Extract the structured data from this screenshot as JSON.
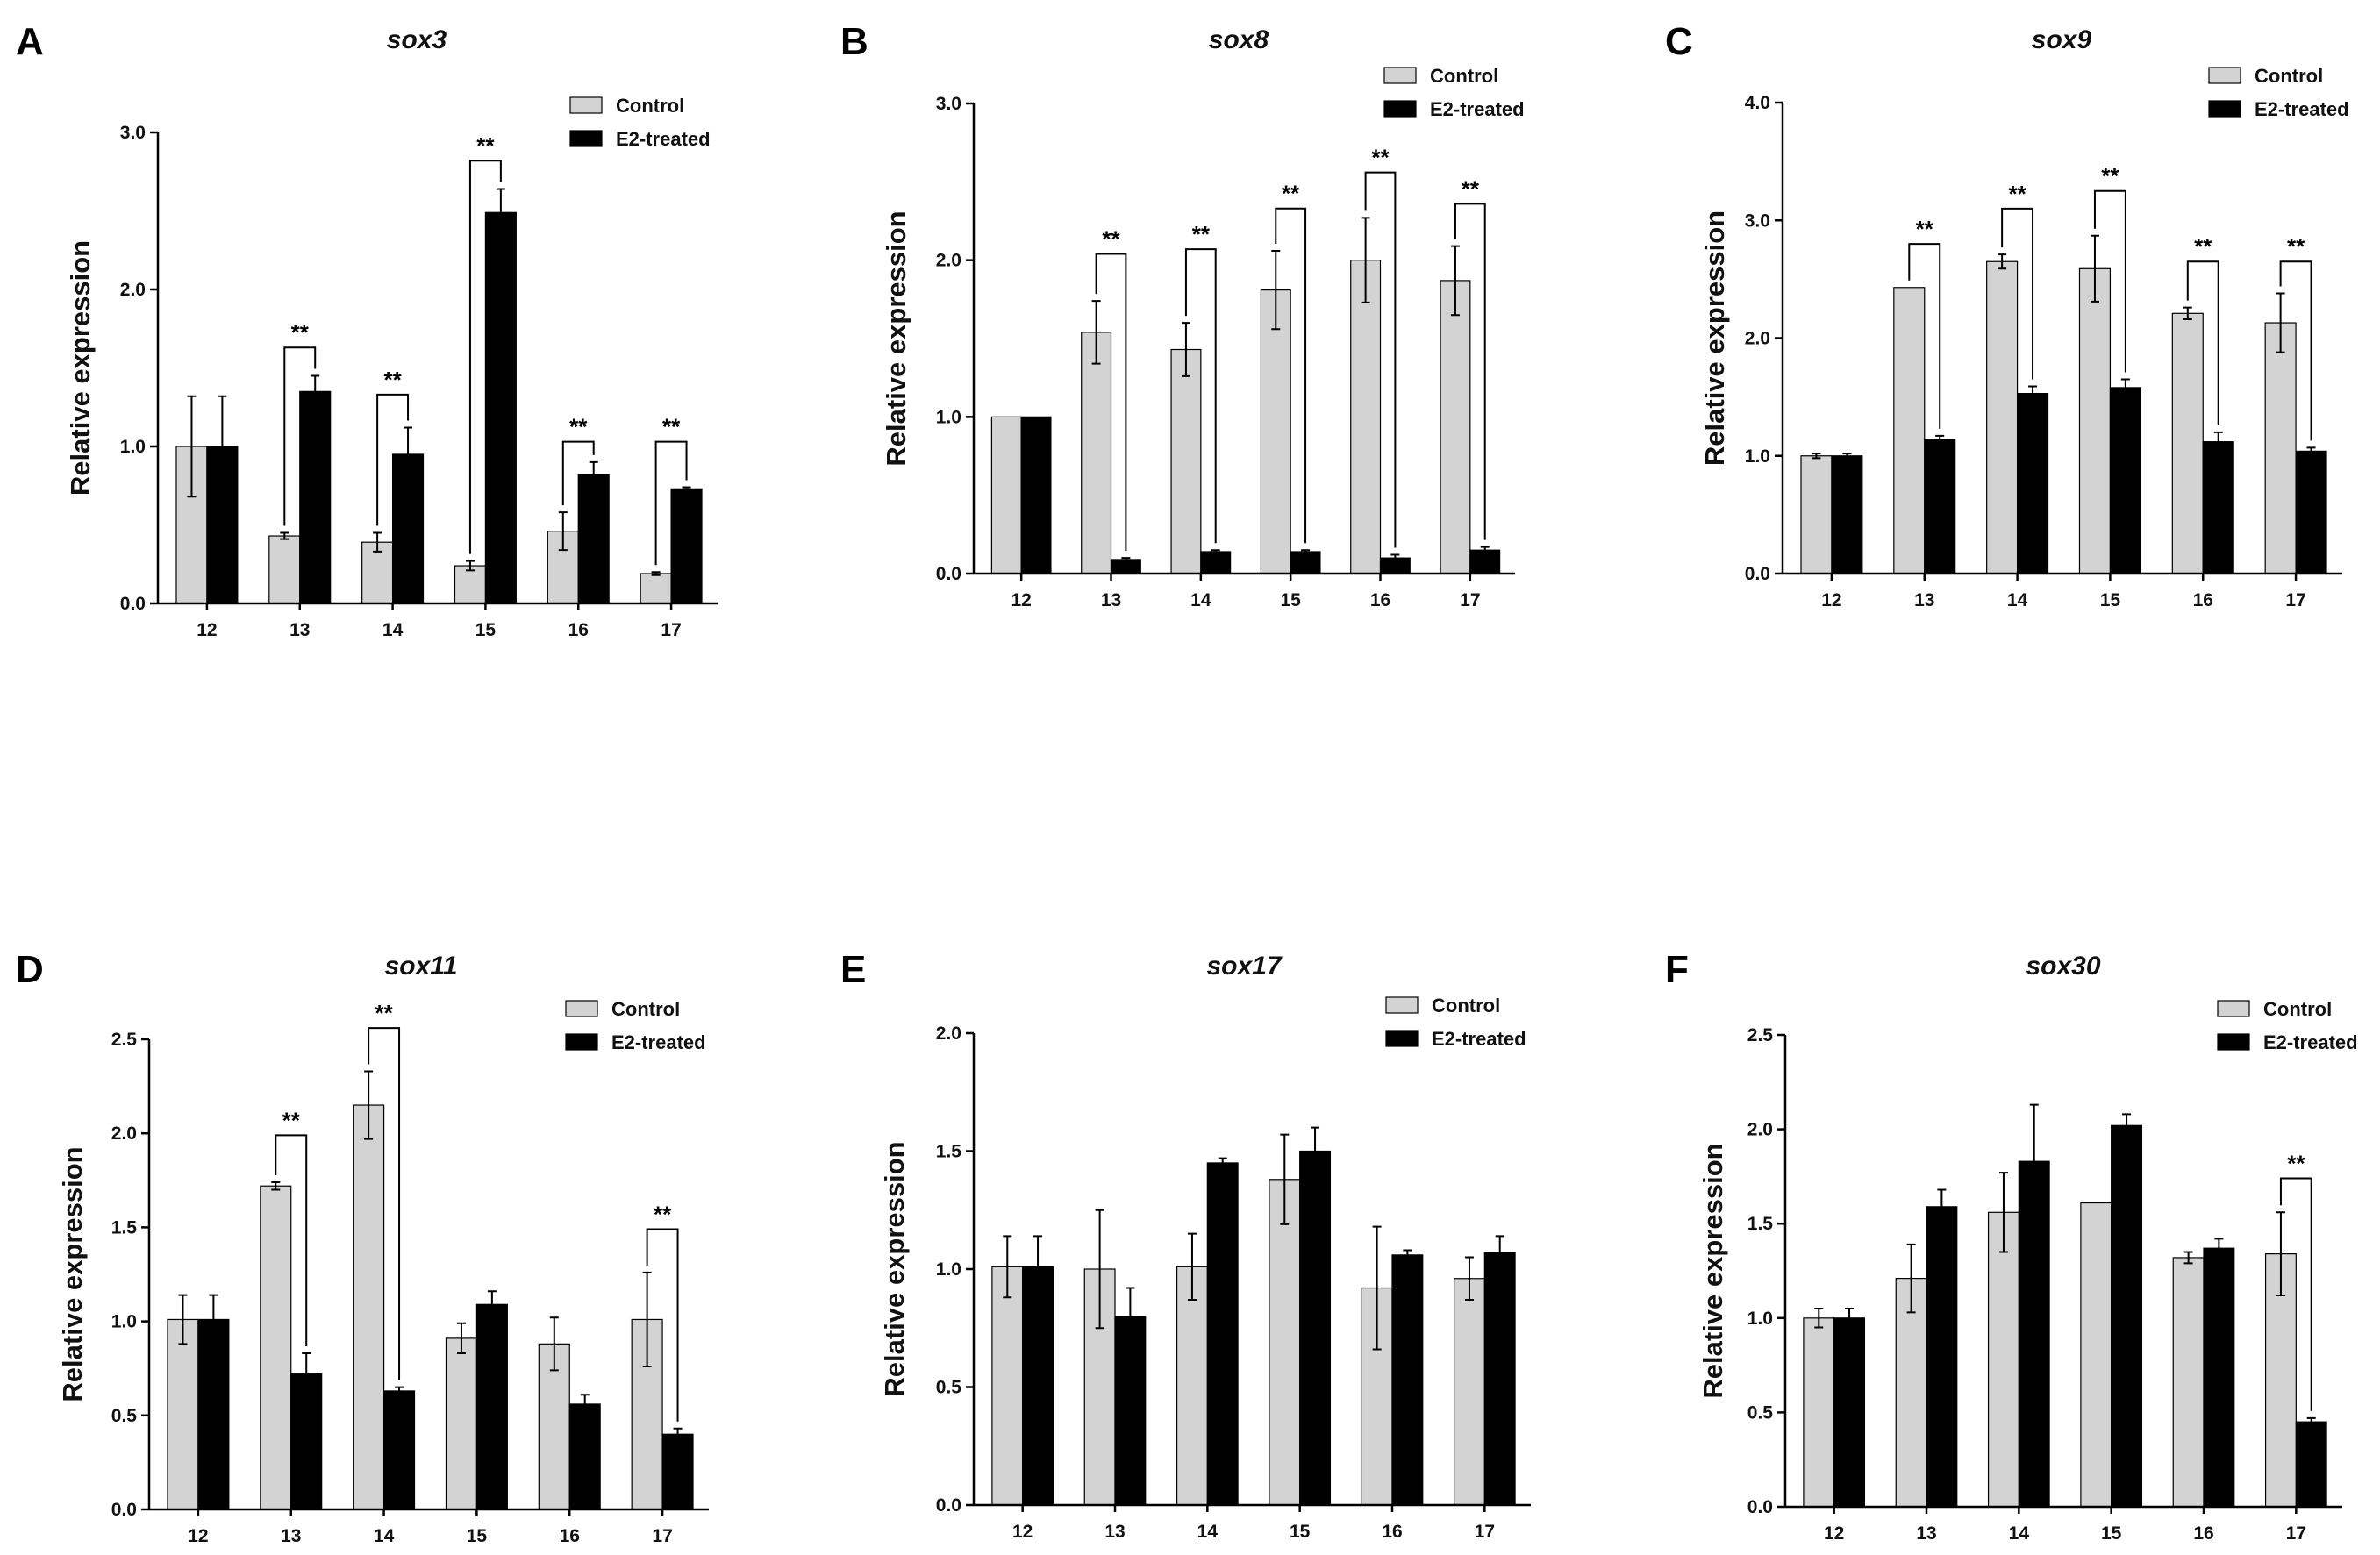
{
  "colors": {
    "control": "#d3d3d3",
    "e2": "#000000",
    "axis": "#000000"
  },
  "chart_data": [
    {
      "panel": "A",
      "type": "bar",
      "title": "sox3",
      "ylabel": "Relative  expression",
      "categories": [
        "12",
        "13",
        "14",
        "15",
        "16",
        "17"
      ],
      "ylim": [
        0,
        3.0
      ],
      "yticks": [
        0.0,
        1.0,
        2.0,
        3.0
      ],
      "ytick_labels": [
        "0.0",
        "1.0",
        "2.0",
        "3.0"
      ],
      "legend": [
        "Control",
        "E2-treated"
      ],
      "legend_position": "top-right",
      "series": [
        {
          "name": "Control",
          "values": [
            1.0,
            0.43,
            0.39,
            0.24,
            0.46,
            0.19
          ],
          "errors": [
            0.32,
            0.02,
            0.06,
            0.03,
            0.12,
            0.01
          ]
        },
        {
          "name": "E2-treated",
          "values": [
            1.0,
            1.35,
            0.95,
            2.49,
            0.82,
            0.73
          ],
          "errors": [
            0.32,
            0.1,
            0.17,
            0.15,
            0.08,
            0.01
          ]
        }
      ],
      "significance": [
        {
          "index": 1,
          "label": "**",
          "y": 1.63
        },
        {
          "index": 2,
          "label": "**",
          "y": 1.33
        },
        {
          "index": 3,
          "label": "**",
          "y": 2.82
        },
        {
          "index": 4,
          "label": "**",
          "y": 1.03
        },
        {
          "index": 5,
          "label": "**",
          "y": 1.03
        }
      ]
    },
    {
      "panel": "B",
      "type": "bar",
      "title": "sox8",
      "ylabel": "Relative  expression",
      "categories": [
        "12",
        "13",
        "14",
        "15",
        "16",
        "17"
      ],
      "ylim": [
        0,
        3.0
      ],
      "yticks": [
        0.0,
        1.0,
        2.0,
        3.0
      ],
      "ytick_labels": [
        "0.0",
        "1.0",
        "2.0",
        "3.0"
      ],
      "legend": [
        "Control",
        "E2-treated"
      ],
      "legend_position": "top-right",
      "series": [
        {
          "name": "Control",
          "values": [
            1.0,
            1.54,
            1.43,
            1.81,
            2.0,
            1.87
          ],
          "errors": [
            0,
            0.2,
            0.17,
            0.25,
            0.27,
            0.22
          ]
        },
        {
          "name": "E2-treated",
          "values": [
            1.0,
            0.09,
            0.14,
            0.14,
            0.1,
            0.15
          ],
          "errors": [
            0,
            0.01,
            0.01,
            0.01,
            0.02,
            0.02
          ]
        }
      ],
      "significance": [
        {
          "index": 1,
          "label": "**",
          "y": 2.04
        },
        {
          "index": 2,
          "label": "**",
          "y": 2.07
        },
        {
          "index": 3,
          "label": "**",
          "y": 2.33
        },
        {
          "index": 4,
          "label": "**",
          "y": 2.56
        },
        {
          "index": 5,
          "label": "**",
          "y": 2.36
        }
      ]
    },
    {
      "panel": "C",
      "type": "bar",
      "title": "sox9",
      "ylabel": "Relative  expression",
      "categories": [
        "12",
        "13",
        "14",
        "15",
        "16",
        "17"
      ],
      "ylim": [
        0,
        4.0
      ],
      "yticks": [
        0.0,
        1.0,
        2.0,
        3.0,
        4.0
      ],
      "ytick_labels": [
        "0.0",
        "1.0",
        "2.0",
        "3.0",
        "4.0"
      ],
      "legend": [
        "Control",
        "E2-treated"
      ],
      "legend_position": "top-right",
      "series": [
        {
          "name": "Control",
          "values": [
            1.0,
            2.43,
            2.65,
            2.59,
            2.21,
            2.13
          ],
          "errors": [
            0.02,
            0,
            0.06,
            0.28,
            0.05,
            0.25
          ]
        },
        {
          "name": "E2-treated",
          "values": [
            1.0,
            1.14,
            1.53,
            1.58,
            1.12,
            1.04
          ],
          "errors": [
            0.02,
            0.03,
            0.06,
            0.07,
            0.08,
            0.03
          ]
        }
      ],
      "significance": [
        {
          "index": 1,
          "label": "**",
          "y": 2.8
        },
        {
          "index": 2,
          "label": "**",
          "y": 3.1
        },
        {
          "index": 3,
          "label": "**",
          "y": 3.25
        },
        {
          "index": 4,
          "label": "**",
          "y": 2.65
        },
        {
          "index": 5,
          "label": "**",
          "y": 2.65
        }
      ]
    },
    {
      "panel": "D",
      "type": "bar",
      "title": "sox11",
      "ylabel": "Relative  expression",
      "categories": [
        "12",
        "13",
        "14",
        "15",
        "16",
        "17"
      ],
      "ylim": [
        0,
        2.5
      ],
      "yticks": [
        0.0,
        0.5,
        1.0,
        1.5,
        2.0,
        2.5
      ],
      "ytick_labels": [
        "0.0",
        "0.5",
        "1.0",
        "1.5",
        "2.0",
        "2.5"
      ],
      "legend": [
        "Control",
        "E2-treated"
      ],
      "legend_position": "top-right",
      "series": [
        {
          "name": "Control",
          "values": [
            1.01,
            1.72,
            2.15,
            0.91,
            0.88,
            1.01
          ],
          "errors": [
            0.13,
            0.02,
            0.18,
            0.08,
            0.14,
            0.25
          ]
        },
        {
          "name": "E2-treated",
          "values": [
            1.01,
            0.72,
            0.63,
            1.09,
            0.56,
            0.4
          ],
          "errors": [
            0.13,
            0.11,
            0.02,
            0.07,
            0.05,
            0.03
          ]
        }
      ],
      "significance": [
        {
          "index": 1,
          "label": "**",
          "y": 1.99
        },
        {
          "index": 2,
          "label": "**",
          "y": 2.56
        },
        {
          "index": 5,
          "label": "**",
          "y": 1.49
        }
      ]
    },
    {
      "panel": "E",
      "type": "bar",
      "title": "sox17",
      "ylabel": "Relative  expression",
      "categories": [
        "12",
        "13",
        "14",
        "15",
        "16",
        "17"
      ],
      "ylim": [
        0,
        2.0
      ],
      "yticks": [
        0.0,
        0.5,
        1.0,
        1.5,
        2.0
      ],
      "ytick_labels": [
        "0.0",
        "0.5",
        "1.0",
        "1.5",
        "2.0"
      ],
      "legend": [
        "Control",
        "E2-treated"
      ],
      "legend_position": "top-right",
      "series": [
        {
          "name": "Control",
          "values": [
            1.01,
            1.0,
            1.01,
            1.38,
            0.92,
            0.96
          ],
          "errors": [
            0.13,
            0.25,
            0.14,
            0.19,
            0.26,
            0.09
          ]
        },
        {
          "name": "E2-treated",
          "values": [
            1.01,
            0.8,
            1.45,
            1.5,
            1.06,
            1.07
          ],
          "errors": [
            0.13,
            0.12,
            0.02,
            0.1,
            0.02,
            0.07
          ]
        }
      ],
      "significance": []
    },
    {
      "panel": "F",
      "type": "bar",
      "title": "sox30",
      "ylabel": "Relative  expression",
      "categories": [
        "12",
        "13",
        "14",
        "15",
        "16",
        "17"
      ],
      "ylim": [
        0,
        2.5
      ],
      "yticks": [
        0.0,
        0.5,
        1.0,
        1.5,
        2.0,
        2.5
      ],
      "ytick_labels": [
        "0.0",
        "0.5",
        "1.0",
        "1.5",
        "2.0",
        "2.5"
      ],
      "legend": [
        "Control",
        "E2-treated"
      ],
      "legend_position": "top-right",
      "series": [
        {
          "name": "Control",
          "values": [
            1.0,
            1.21,
            1.56,
            1.61,
            1.32,
            1.34
          ],
          "errors": [
            0.05,
            0.18,
            0.21,
            0,
            0.03,
            0.22
          ]
        },
        {
          "name": "E2-treated",
          "values": [
            1.0,
            1.59,
            1.83,
            2.02,
            1.37,
            0.45
          ],
          "errors": [
            0.05,
            0.09,
            0.3,
            0.06,
            0.05,
            0.02
          ]
        }
      ],
      "significance": [
        {
          "index": 5,
          "label": "**",
          "y": 1.74
        }
      ]
    }
  ]
}
